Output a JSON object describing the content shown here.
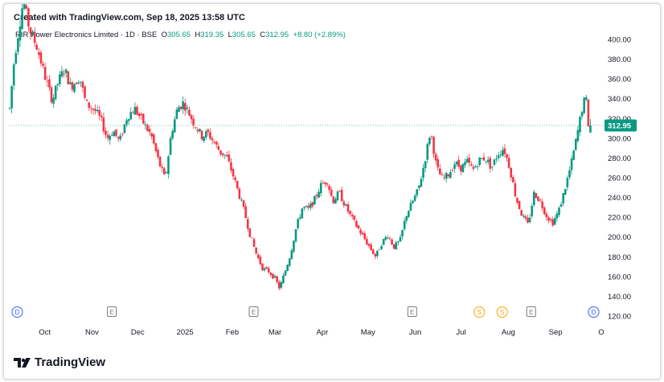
{
  "header": {
    "created": "Created with TradingView.com, Sep 18, 2025 13:58 UTC"
  },
  "legend": {
    "title": "RIR Power Electronics Limited · 1D · BSE",
    "o_label": "O",
    "o": "305.65",
    "h_label": "H",
    "h": "319.35",
    "l_label": "L",
    "l": "305.65",
    "c_label": "C",
    "c": "312.95",
    "change": "+8.80 (+2.89%)"
  },
  "brand": {
    "name": "TradingView"
  },
  "colors": {
    "up": "#089981",
    "down": "#f23645",
    "price_tag": "#089981",
    "divider_badge": "#f7a600",
    "earnings_badge": "#787b86",
    "dividend_badge": "#2962ff"
  },
  "chart_data": {
    "type": "candlestick",
    "symbol": "RIR Power Electronics Limited",
    "interval": "1D",
    "exchange": "BSE",
    "y_ticks": [
      120,
      140,
      160,
      180,
      200,
      220,
      240,
      260,
      280,
      300,
      320,
      340,
      360,
      380,
      400
    ],
    "y_tick_labels": [
      "120.00",
      "140.00",
      "160.00",
      "180.00",
      "200.00",
      "220.00",
      "240.00",
      "260.00",
      "280.00",
      "300.00",
      "320.00",
      "340.00",
      "360.00",
      "380.00",
      "400.00"
    ],
    "ylim": [
      115,
      410
    ],
    "x_labels": [
      {
        "label": "Oct",
        "day": 23
      },
      {
        "label": "Nov",
        "day": 54
      },
      {
        "label": "Dec",
        "day": 84
      },
      {
        "label": "2025",
        "day": 115
      },
      {
        "label": "Feb",
        "day": 146
      },
      {
        "label": "Mar",
        "day": 174
      },
      {
        "label": "Apr",
        "day": 205
      },
      {
        "label": "May",
        "day": 235
      },
      {
        "label": "Jun",
        "day": 266
      },
      {
        "label": "Jul",
        "day": 296
      },
      {
        "label": "Aug",
        "day": 327
      },
      {
        "label": "Sep",
        "day": 358
      },
      {
        "label": "O",
        "day": 388
      }
    ],
    "last_price": 312.95,
    "last_price_label": "312.95",
    "events": [
      {
        "letter": "D",
        "kind": "dividend",
        "day": 5
      },
      {
        "letter": "E",
        "kind": "earnings",
        "day": 67
      },
      {
        "letter": "E",
        "kind": "earnings",
        "day": 160
      },
      {
        "letter": "E",
        "kind": "earnings",
        "day": 264
      },
      {
        "letter": "S",
        "kind": "split",
        "day": 308
      },
      {
        "letter": "S",
        "kind": "split",
        "day": 323
      },
      {
        "letter": "E",
        "kind": "earnings",
        "day": 342
      },
      {
        "letter": "D",
        "kind": "dividend",
        "day": 383
      }
    ],
    "path_anchors": [
      [
        0,
        330
      ],
      [
        3,
        380
      ],
      [
        9,
        440
      ],
      [
        13,
        410
      ],
      [
        18,
        392
      ],
      [
        24,
        358
      ],
      [
        28,
        338
      ],
      [
        32,
        358
      ],
      [
        36,
        370
      ],
      [
        40,
        352
      ],
      [
        46,
        362
      ],
      [
        50,
        335
      ],
      [
        56,
        328
      ],
      [
        60,
        318
      ],
      [
        64,
        300
      ],
      [
        68,
        308
      ],
      [
        72,
        296
      ],
      [
        77,
        322
      ],
      [
        82,
        330
      ],
      [
        88,
        315
      ],
      [
        93,
        302
      ],
      [
        98,
        275
      ],
      [
        102,
        258
      ],
      [
        106,
        305
      ],
      [
        110,
        330
      ],
      [
        114,
        336
      ],
      [
        120,
        318
      ],
      [
        126,
        302
      ],
      [
        130,
        305
      ],
      [
        134,
        296
      ],
      [
        138,
        286
      ],
      [
        142,
        282
      ],
      [
        146,
        265
      ],
      [
        150,
        245
      ],
      [
        154,
        225
      ],
      [
        158,
        200
      ],
      [
        162,
        182
      ],
      [
        166,
        168
      ],
      [
        170,
        165
      ],
      [
        174,
        158
      ],
      [
        177,
        148
      ],
      [
        180,
        162
      ],
      [
        184,
        182
      ],
      [
        188,
        210
      ],
      [
        192,
        230
      ],
      [
        196,
        228
      ],
      [
        200,
        238
      ],
      [
        204,
        252
      ],
      [
        208,
        258
      ],
      [
        212,
        236
      ],
      [
        216,
        245
      ],
      [
        220,
        232
      ],
      [
        224,
        220
      ],
      [
        228,
        210
      ],
      [
        232,
        200
      ],
      [
        236,
        190
      ],
      [
        240,
        180
      ],
      [
        244,
        194
      ],
      [
        248,
        202
      ],
      [
        252,
        190
      ],
      [
        256,
        196
      ],
      [
        260,
        222
      ],
      [
        264,
        235
      ],
      [
        268,
        248
      ],
      [
        272,
        275
      ],
      [
        276,
        308
      ],
      [
        280,
        270
      ],
      [
        284,
        258
      ],
      [
        288,
        264
      ],
      [
        292,
        275
      ],
      [
        296,
        270
      ],
      [
        300,
        276
      ],
      [
        304,
        268
      ],
      [
        308,
        278
      ],
      [
        312,
        280
      ],
      [
        316,
        270
      ],
      [
        320,
        284
      ],
      [
        324,
        290
      ],
      [
        328,
        270
      ],
      [
        332,
        240
      ],
      [
        336,
        222
      ],
      [
        340,
        212
      ],
      [
        344,
        245
      ],
      [
        348,
        236
      ],
      [
        352,
        222
      ],
      [
        356,
        214
      ],
      [
        360,
        226
      ],
      [
        364,
        248
      ],
      [
        368,
        272
      ],
      [
        372,
        302
      ],
      [
        376,
        335
      ],
      [
        378,
        340
      ],
      [
        380,
        306
      ],
      [
        382,
        312.95
      ]
    ]
  }
}
